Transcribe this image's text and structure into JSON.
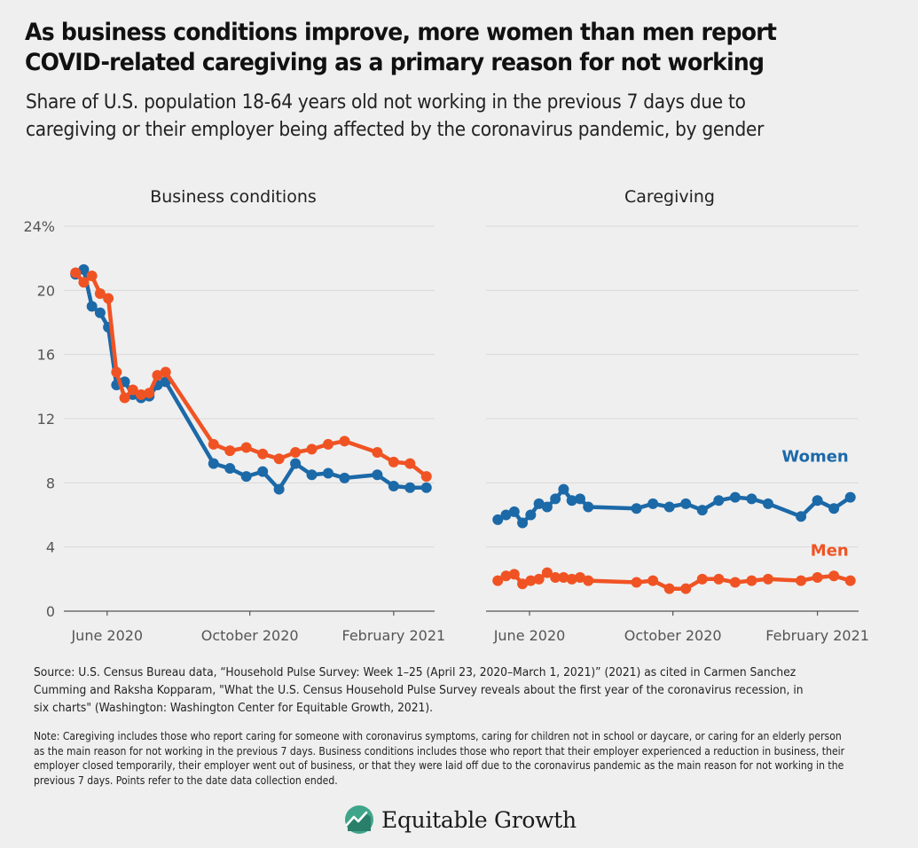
{
  "title": "As business conditions improve, more women than men report COVID-related caregiving as a primary reason for not working",
  "subtitle": "Share of U.S. population 18-64 years old not working in the previous 7 days due to caregiving or their employer being affected by the coronavirus pandemic, by gender",
  "source": "Source: U.S. Census Bureau data, “Household Pulse Survey: Week 1–25 (April 23, 2020–March 1, 2021)” (2021) as cited in Carmen Sanchez Cumming and Raksha Kopparam, \"What the U.S. Census Household Pulse Survey reveals about the first year of the coronavirus recession, in six charts\" (Washington: Washington Center for Equitable Growth, 2021).",
  "note": "Note: Caregiving includes those who report caring for someone with coronavirus symptoms, caring for children not in school or daycare, or caring for an elderly person as the main reason for not working in the previous 7 days. Business conditions includes those who report that their employer experienced a reduction in business, their employer closed temporarily, their employer went out of business, or that they were laid off due to the coronavirus pandemic as the main reason for not working in the previous 7 days. Points refer to the date data collection ended.",
  "logo": {
    "text": "Equitable Growth"
  },
  "colors": {
    "women": "#1c69a8",
    "men": "#f05323",
    "grid": "#d9d9d9",
    "axis": "#555555"
  },
  "chart_data": [
    {
      "type": "line",
      "panel_title": "Business conditions",
      "x_ticks": [
        {
          "date": "2020-06-01",
          "label": "June 2020"
        },
        {
          "date": "2020-10-01",
          "label": "October 2020"
        },
        {
          "date": "2021-02-01",
          "label": "February 2021"
        }
      ],
      "y_ticks": [
        {
          "value": 0,
          "label": "0"
        },
        {
          "value": 4,
          "label": "4"
        },
        {
          "value": 8,
          "label": "8"
        },
        {
          "value": 12,
          "label": "12"
        },
        {
          "value": 16,
          "label": "16"
        },
        {
          "value": 20,
          "label": "20"
        },
        {
          "value": 24,
          "label": "24%"
        }
      ],
      "ylim": [
        0,
        24
      ],
      "xlim": [
        "2020-04-25",
        "2021-03-08"
      ],
      "grid": true,
      "series": [
        {
          "name": "",
          "color": "#1c69a8",
          "points": [
            [
              "2020-05-05",
              21.0
            ],
            [
              "2020-05-12",
              21.3
            ],
            [
              "2020-05-19",
              19.0
            ],
            [
              "2020-05-26",
              18.6
            ],
            [
              "2020-06-02",
              17.7
            ],
            [
              "2020-06-09",
              14.1
            ],
            [
              "2020-06-16",
              14.3
            ],
            [
              "2020-06-23",
              13.5
            ],
            [
              "2020-06-30",
              13.3
            ],
            [
              "2020-07-07",
              13.4
            ],
            [
              "2020-07-14",
              14.1
            ],
            [
              "2020-07-21",
              14.3
            ],
            [
              "2020-08-31",
              9.2
            ],
            [
              "2020-09-14",
              8.9
            ],
            [
              "2020-09-28",
              8.4
            ],
            [
              "2020-10-12",
              8.7
            ],
            [
              "2020-10-26",
              7.6
            ],
            [
              "2020-11-09",
              9.2
            ],
            [
              "2020-11-23",
              8.5
            ],
            [
              "2020-12-07",
              8.6
            ],
            [
              "2020-12-21",
              8.3
            ],
            [
              "2021-01-18",
              8.5
            ],
            [
              "2021-02-01",
              7.8
            ],
            [
              "2021-02-15",
              7.7
            ],
            [
              "2021-03-01",
              7.7
            ]
          ]
        },
        {
          "name": "",
          "color": "#f05323",
          "points": [
            [
              "2020-05-05",
              21.1
            ],
            [
              "2020-05-12",
              20.5
            ],
            [
              "2020-05-19",
              20.9
            ],
            [
              "2020-05-26",
              19.8
            ],
            [
              "2020-06-02",
              19.5
            ],
            [
              "2020-06-09",
              14.9
            ],
            [
              "2020-06-16",
              13.3
            ],
            [
              "2020-06-23",
              13.8
            ],
            [
              "2020-06-30",
              13.5
            ],
            [
              "2020-07-07",
              13.6
            ],
            [
              "2020-07-14",
              14.7
            ],
            [
              "2020-07-21",
              14.9
            ],
            [
              "2020-08-31",
              10.4
            ],
            [
              "2020-09-14",
              10.0
            ],
            [
              "2020-09-28",
              10.2
            ],
            [
              "2020-10-12",
              9.8
            ],
            [
              "2020-10-26",
              9.5
            ],
            [
              "2020-11-09",
              9.9
            ],
            [
              "2020-11-23",
              10.1
            ],
            [
              "2020-12-07",
              10.4
            ],
            [
              "2020-12-21",
              10.6
            ],
            [
              "2021-01-18",
              9.9
            ],
            [
              "2021-02-01",
              9.3
            ],
            [
              "2021-02-15",
              9.2
            ],
            [
              "2021-03-01",
              8.4
            ]
          ]
        }
      ]
    },
    {
      "type": "line",
      "panel_title": "Caregiving",
      "x_ticks": [
        {
          "date": "2020-06-01",
          "label": "June 2020"
        },
        {
          "date": "2020-10-01",
          "label": "October 2020"
        },
        {
          "date": "2021-02-01",
          "label": "February 2021"
        }
      ],
      "ylim": [
        0,
        24
      ],
      "xlim": [
        "2020-04-25",
        "2021-03-08"
      ],
      "grid": true,
      "series": [
        {
          "name": "Women",
          "color": "#1c69a8",
          "points": [
            [
              "2020-05-05",
              5.7
            ],
            [
              "2020-05-12",
              6.0
            ],
            [
              "2020-05-19",
              6.2
            ],
            [
              "2020-05-26",
              5.5
            ],
            [
              "2020-06-02",
              6.0
            ],
            [
              "2020-06-09",
              6.7
            ],
            [
              "2020-06-16",
              6.5
            ],
            [
              "2020-06-23",
              7.0
            ],
            [
              "2020-06-30",
              7.6
            ],
            [
              "2020-07-07",
              6.9
            ],
            [
              "2020-07-14",
              7.0
            ],
            [
              "2020-07-21",
              6.5
            ],
            [
              "2020-08-31",
              6.4
            ],
            [
              "2020-09-14",
              6.7
            ],
            [
              "2020-09-28",
              6.5
            ],
            [
              "2020-10-12",
              6.7
            ],
            [
              "2020-10-26",
              6.3
            ],
            [
              "2020-11-09",
              6.9
            ],
            [
              "2020-11-23",
              7.1
            ],
            [
              "2020-12-07",
              7.0
            ],
            [
              "2020-12-21",
              6.7
            ],
            [
              "2021-01-18",
              5.9
            ],
            [
              "2021-02-01",
              6.9
            ],
            [
              "2021-02-15",
              6.4
            ],
            [
              "2021-03-01",
              7.1
            ]
          ]
        },
        {
          "name": "Men",
          "color": "#f05323",
          "points": [
            [
              "2020-05-05",
              1.9
            ],
            [
              "2020-05-12",
              2.2
            ],
            [
              "2020-05-19",
              2.3
            ],
            [
              "2020-05-26",
              1.7
            ],
            [
              "2020-06-02",
              1.9
            ],
            [
              "2020-06-09",
              2.0
            ],
            [
              "2020-06-16",
              2.4
            ],
            [
              "2020-06-23",
              2.1
            ],
            [
              "2020-06-30",
              2.1
            ],
            [
              "2020-07-07",
              2.0
            ],
            [
              "2020-07-14",
              2.1
            ],
            [
              "2020-07-21",
              1.9
            ],
            [
              "2020-08-31",
              1.8
            ],
            [
              "2020-09-14",
              1.9
            ],
            [
              "2020-09-28",
              1.4
            ],
            [
              "2020-10-12",
              1.4
            ],
            [
              "2020-10-26",
              2.0
            ],
            [
              "2020-11-09",
              2.0
            ],
            [
              "2020-11-23",
              1.8
            ],
            [
              "2020-12-07",
              1.9
            ],
            [
              "2020-12-21",
              2.0
            ],
            [
              "2021-01-18",
              1.9
            ],
            [
              "2021-02-01",
              2.1
            ],
            [
              "2021-02-15",
              2.2
            ],
            [
              "2021-03-01",
              1.9
            ]
          ]
        }
      ]
    }
  ]
}
